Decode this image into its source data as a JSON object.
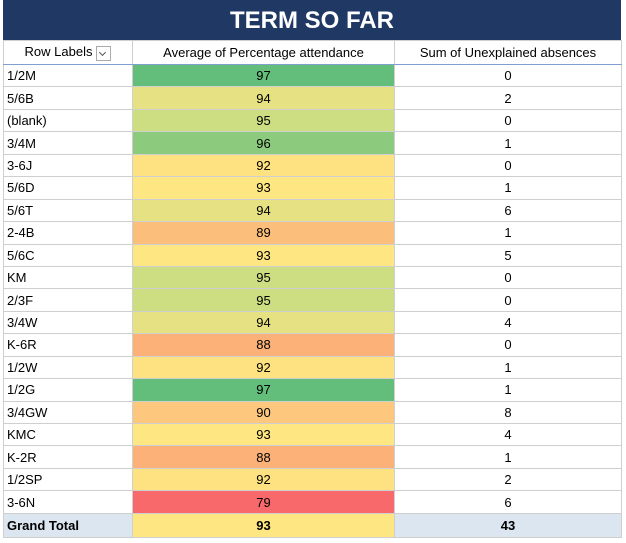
{
  "title": "TERM SO FAR",
  "table": {
    "headers": [
      "Row Labels",
      "Average of Percentage attendance",
      "Sum of Unexplained absences"
    ],
    "rows": [
      {
        "label": "1/2M",
        "attendance": 97,
        "absences": 0,
        "color": "#63be7b"
      },
      {
        "label": "5/6B",
        "attendance": 94,
        "absences": 2,
        "color": "#e6e183"
      },
      {
        "label": "(blank)",
        "attendance": 95,
        "absences": 0,
        "color": "#cddd82"
      },
      {
        "label": "3/4M",
        "attendance": 96,
        "absences": 1,
        "color": "#8ccb7d"
      },
      {
        "label": "3-6J",
        "attendance": 92,
        "absences": 0,
        "color": "#fee282"
      },
      {
        "label": "5/6D",
        "attendance": 93,
        "absences": 1,
        "color": "#fee783"
      },
      {
        "label": "5/6T",
        "attendance": 94,
        "absences": 6,
        "color": "#e6e183"
      },
      {
        "label": "2-4B",
        "attendance": 89,
        "absences": 1,
        "color": "#fcbe7b"
      },
      {
        "label": "5/6C",
        "attendance": 93,
        "absences": 5,
        "color": "#fee783"
      },
      {
        "label": "KM",
        "attendance": 95,
        "absences": 0,
        "color": "#cddd82"
      },
      {
        "label": "2/3F",
        "attendance": 95,
        "absences": 0,
        "color": "#cddd82"
      },
      {
        "label": "3/4W",
        "attendance": 94,
        "absences": 4,
        "color": "#e6e183"
      },
      {
        "label": "K-6R",
        "attendance": 88,
        "absences": 0,
        "color": "#fbb178"
      },
      {
        "label": "1/2W",
        "attendance": 92,
        "absences": 1,
        "color": "#fee282"
      },
      {
        "label": "1/2G",
        "attendance": 97,
        "absences": 1,
        "color": "#63be7b"
      },
      {
        "label": "3/4GW",
        "attendance": 90,
        "absences": 8,
        "color": "#fdc87e"
      },
      {
        "label": "KMC",
        "attendance": 93,
        "absences": 4,
        "color": "#fee783"
      },
      {
        "label": "K-2R",
        "attendance": 88,
        "absences": 1,
        "color": "#fbb178"
      },
      {
        "label": "1/2SP",
        "attendance": 92,
        "absences": 2,
        "color": "#fee282"
      },
      {
        "label": "3-6N",
        "attendance": 79,
        "absences": 6,
        "color": "#f8696b"
      }
    ],
    "total": {
      "label": "Grand Total",
      "attendance": 93,
      "absences": 43,
      "color": "#fee783"
    }
  }
}
